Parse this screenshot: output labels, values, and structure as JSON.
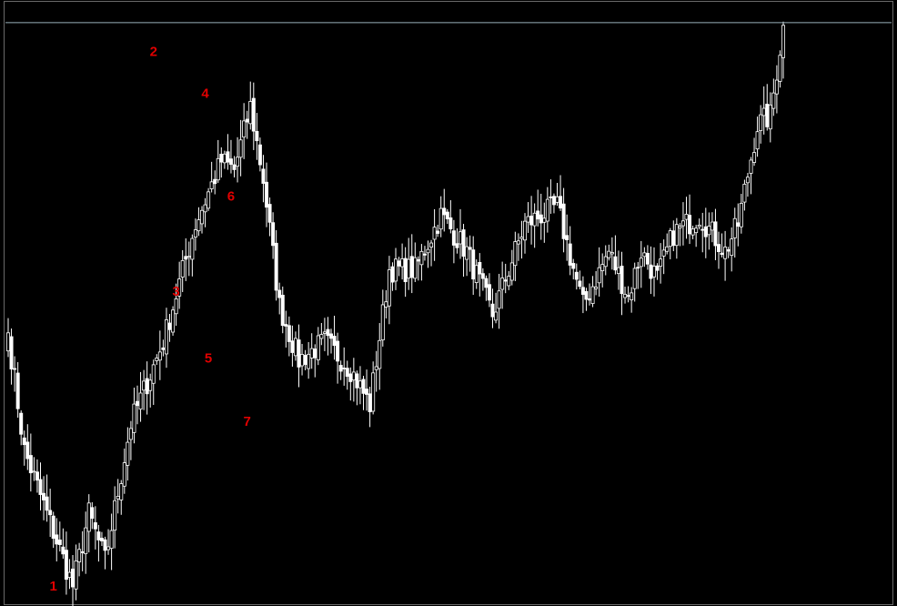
{
  "chart_data": {
    "type": "candlestick",
    "title": "",
    "xlabel": "",
    "ylabel": "",
    "grid": false,
    "legend": "none",
    "colors": {
      "background": "#000000",
      "candle_up": "#000000",
      "candle_down": "#ffffff",
      "wick": "#ffffff",
      "labels": "#e00000",
      "horizontal_line": "#9ab0ba",
      "frame": "#6a6a6a"
    },
    "ylim": [
      0,
      666
    ],
    "price_line": 643,
    "anchors": [
      [
        0,
        300
      ],
      [
        5,
        170
      ],
      [
        12,
        100
      ],
      [
        20,
        20
      ],
      [
        25,
        100
      ],
      [
        30,
        48
      ],
      [
        38,
        200
      ],
      [
        48,
        290
      ],
      [
        58,
        420
      ],
      [
        66,
        490
      ],
      [
        70,
        480
      ],
      [
        75,
        550
      ],
      [
        79,
        470
      ],
      [
        84,
        330
      ],
      [
        90,
        270
      ],
      [
        98,
        290
      ],
      [
        106,
        260
      ],
      [
        112,
        220
      ],
      [
        118,
        370
      ],
      [
        126,
        370
      ],
      [
        134,
        430
      ],
      [
        142,
        390
      ],
      [
        150,
        320
      ],
      [
        160,
        420
      ],
      [
        170,
        440
      ],
      [
        178,
        330
      ],
      [
        186,
        390
      ],
      [
        192,
        340
      ],
      [
        196,
        390
      ],
      [
        201,
        360
      ],
      [
        206,
        410
      ],
      [
        214,
        430
      ],
      [
        222,
        390
      ],
      [
        226,
        420
      ],
      [
        232,
        530
      ],
      [
        236,
        540
      ],
      [
        240,
        640
      ]
    ],
    "wave_labels": [
      {
        "text": "1",
        "index": 14,
        "price": 15
      },
      {
        "text": "2",
        "index": 45,
        "price": 606
      },
      {
        "text": "3",
        "index": 52,
        "price": 341
      },
      {
        "text": "4",
        "index": 61,
        "price": 560
      },
      {
        "text": "5",
        "index": 62,
        "price": 267
      },
      {
        "text": "6",
        "index": 69,
        "price": 446
      },
      {
        "text": "7",
        "index": 74,
        "price": 197
      }
    ]
  }
}
